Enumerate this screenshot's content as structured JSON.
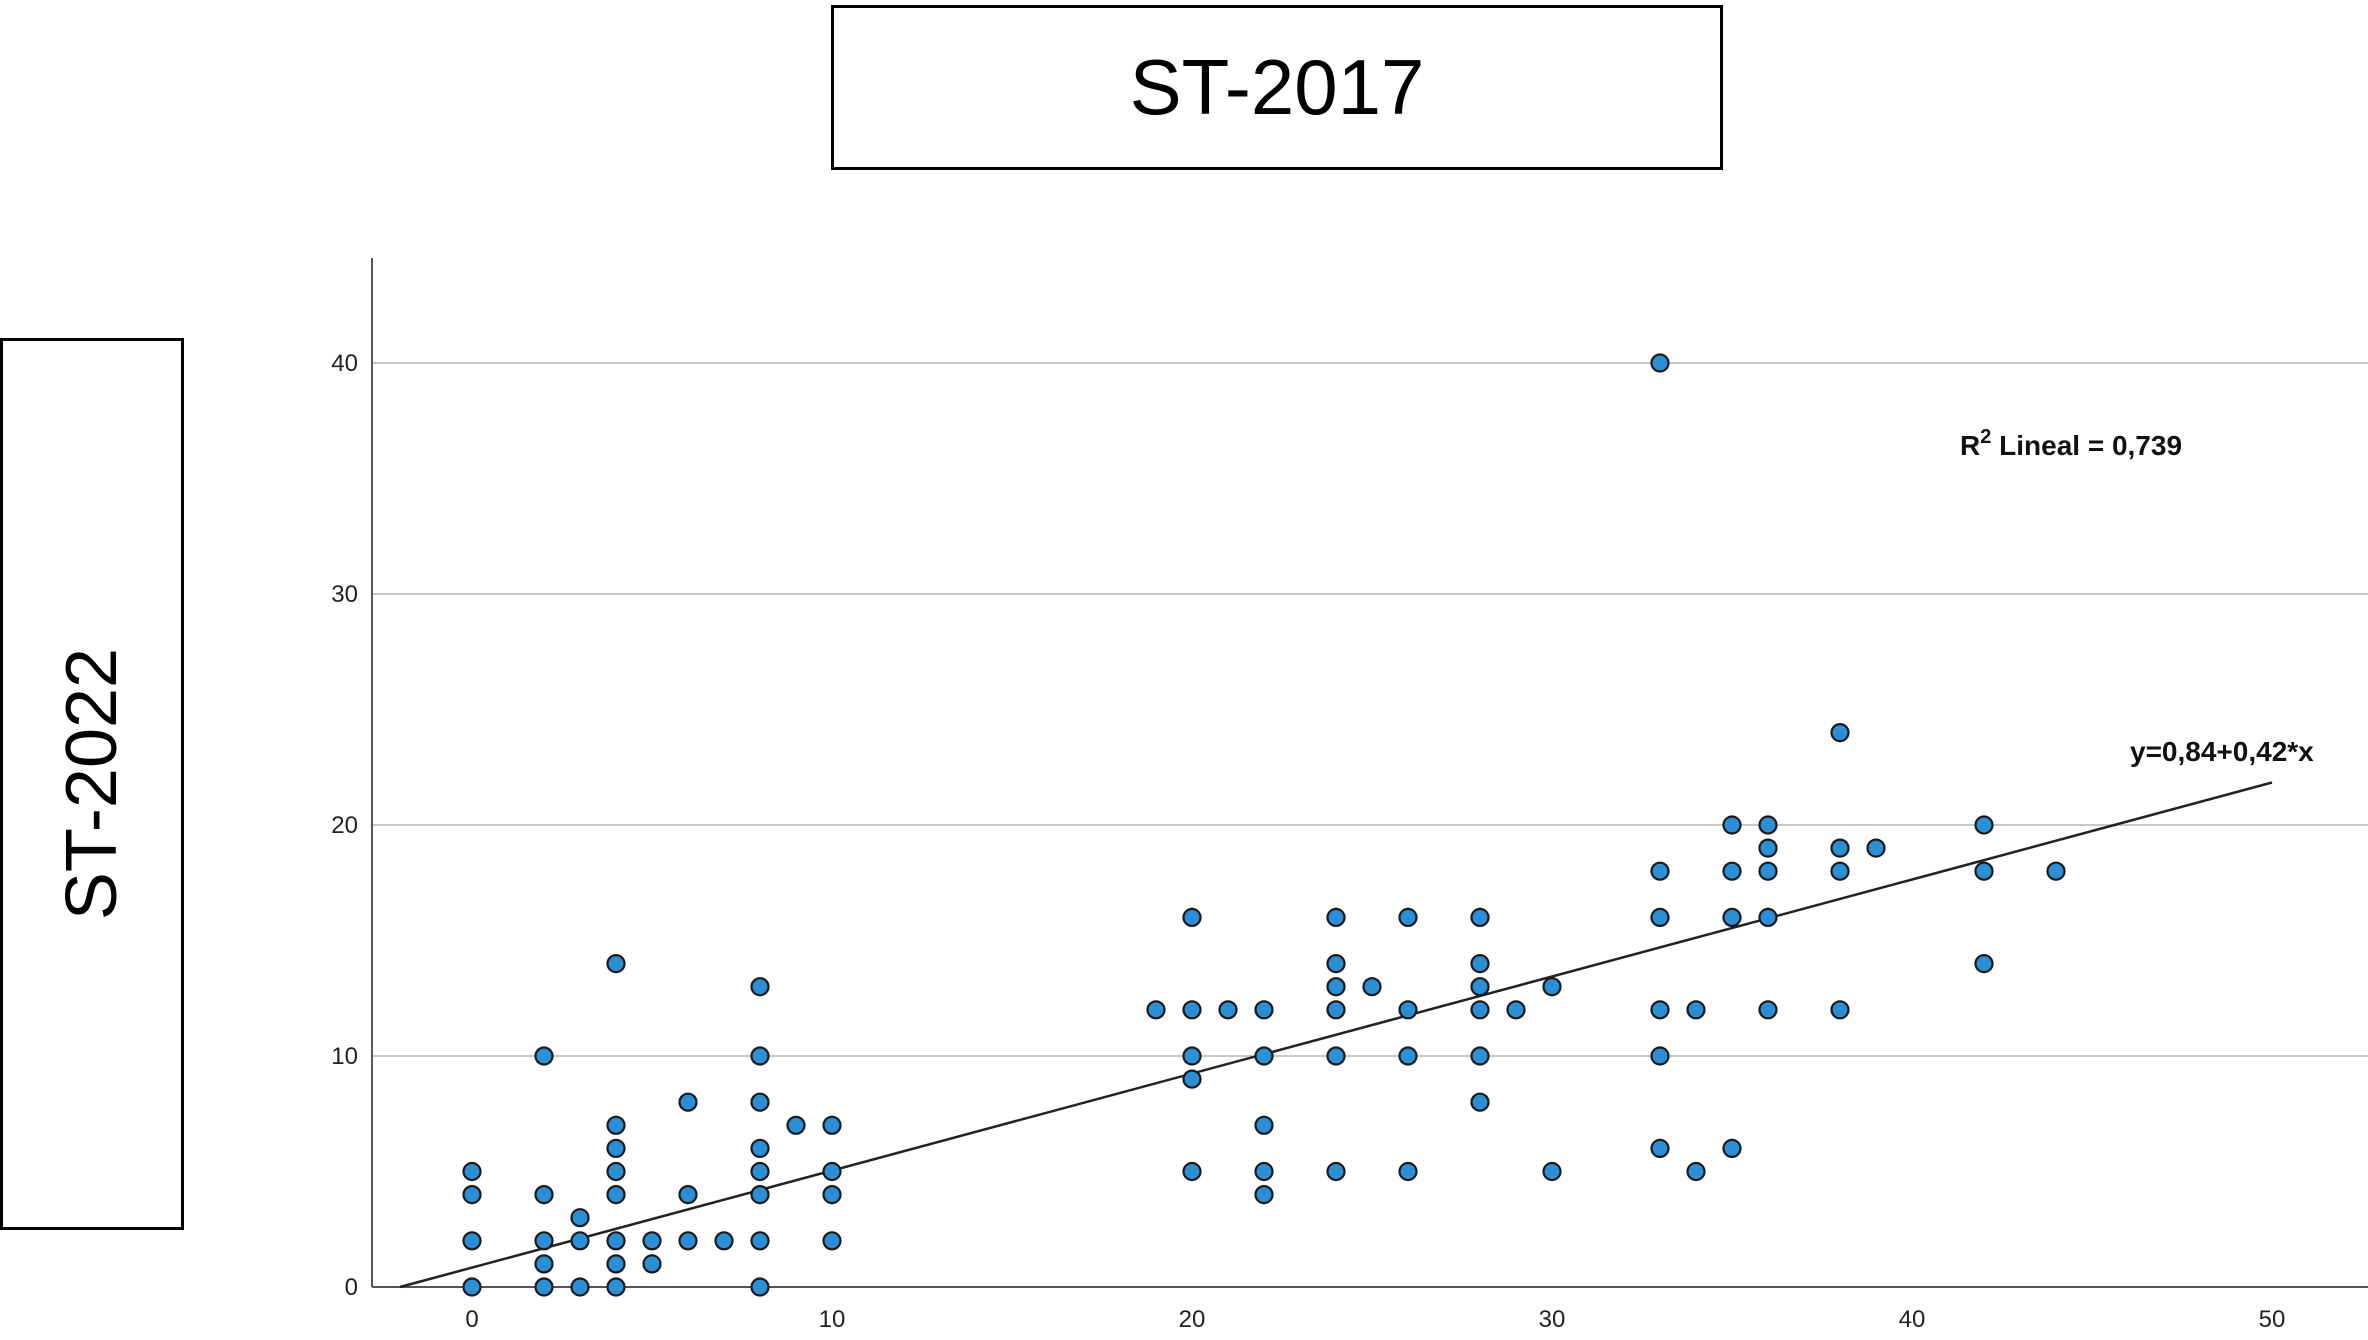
{
  "chart_data": {
    "type": "scatter",
    "title": "ST-2017",
    "xlabel": "ST-2017",
    "ylabel": "ST-2022",
    "xlim": [
      -2,
      52
    ],
    "ylim": [
      0,
      45
    ],
    "x_ticks": [
      0,
      10,
      20,
      30,
      40,
      50
    ],
    "y_ticks": [
      0,
      10,
      20,
      30,
      40
    ],
    "grid": "horizontal",
    "point_color": "#2b8fd6",
    "points": [
      [
        0,
        0
      ],
      [
        0,
        2
      ],
      [
        0,
        4
      ],
      [
        0,
        5
      ],
      [
        2,
        0
      ],
      [
        2,
        1
      ],
      [
        2,
        2
      ],
      [
        2,
        4
      ],
      [
        2,
        10
      ],
      [
        3,
        0
      ],
      [
        3,
        2
      ],
      [
        3,
        3
      ],
      [
        4,
        0
      ],
      [
        4,
        1
      ],
      [
        4,
        2
      ],
      [
        4,
        4
      ],
      [
        4,
        5
      ],
      [
        4,
        6
      ],
      [
        4,
        7
      ],
      [
        4,
        14
      ],
      [
        5,
        1
      ],
      [
        5,
        2
      ],
      [
        6,
        2
      ],
      [
        6,
        4
      ],
      [
        6,
        8
      ],
      [
        7,
        2
      ],
      [
        8,
        0
      ],
      [
        8,
        2
      ],
      [
        8,
        4
      ],
      [
        8,
        5
      ],
      [
        8,
        6
      ],
      [
        8,
        8
      ],
      [
        8,
        10
      ],
      [
        8,
        13
      ],
      [
        9,
        7
      ],
      [
        10,
        2
      ],
      [
        10,
        4
      ],
      [
        10,
        5
      ],
      [
        10,
        7
      ],
      [
        19,
        12
      ],
      [
        20,
        5
      ],
      [
        20,
        9
      ],
      [
        20,
        10
      ],
      [
        20,
        12
      ],
      [
        20,
        16
      ],
      [
        21,
        12
      ],
      [
        22,
        4
      ],
      [
        22,
        5
      ],
      [
        22,
        7
      ],
      [
        22,
        10
      ],
      [
        22,
        12
      ],
      [
        24,
        5
      ],
      [
        24,
        10
      ],
      [
        24,
        12
      ],
      [
        24,
        13
      ],
      [
        24,
        14
      ],
      [
        24,
        16
      ],
      [
        25,
        13
      ],
      [
        26,
        5
      ],
      [
        26,
        10
      ],
      [
        26,
        12
      ],
      [
        26,
        16
      ],
      [
        28,
        8
      ],
      [
        28,
        10
      ],
      [
        28,
        12
      ],
      [
        28,
        13
      ],
      [
        28,
        14
      ],
      [
        28,
        16
      ],
      [
        29,
        12
      ],
      [
        30,
        5
      ],
      [
        30,
        13
      ],
      [
        33,
        6
      ],
      [
        33,
        10
      ],
      [
        33,
        12
      ],
      [
        33,
        16
      ],
      [
        33,
        18
      ],
      [
        33,
        40
      ],
      [
        34,
        5
      ],
      [
        34,
        12
      ],
      [
        35,
        6
      ],
      [
        35,
        16
      ],
      [
        35,
        18
      ],
      [
        35,
        20
      ],
      [
        36,
        12
      ],
      [
        36,
        16
      ],
      [
        36,
        18
      ],
      [
        36,
        19
      ],
      [
        36,
        20
      ],
      [
        38,
        12
      ],
      [
        38,
        18
      ],
      [
        38,
        19
      ],
      [
        38,
        24
      ],
      [
        39,
        19
      ],
      [
        42,
        14
      ],
      [
        42,
        18
      ],
      [
        42,
        20
      ],
      [
        44,
        18
      ]
    ],
    "fit_line": {
      "intercept": 0.84,
      "slope": 0.42,
      "x_range": [
        -2,
        50
      ]
    },
    "annotations": {
      "r2_prefix": "R",
      "r2_sup": "2",
      "r2_text": " Lineal = 0,739",
      "equation": "y=0,84+0,42*x"
    }
  }
}
